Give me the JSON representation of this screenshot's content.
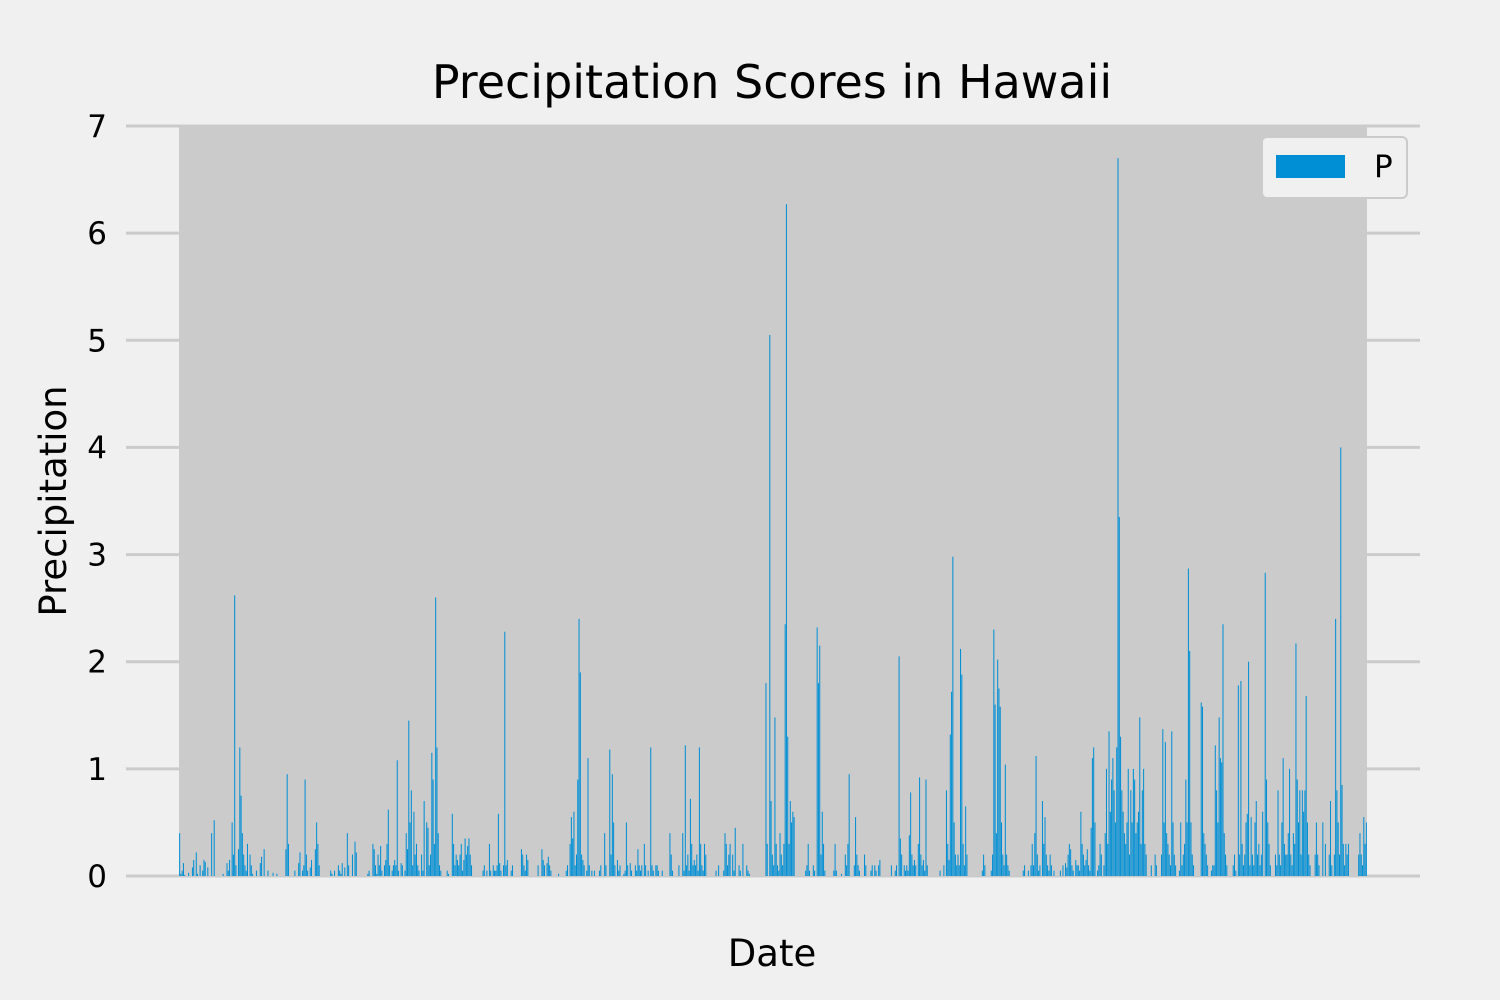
{
  "chart_data": {
    "type": "bar",
    "title": "Precipitation Scores in Hawaii",
    "xlabel": "Date",
    "ylabel": "Precipitation",
    "ylim": [
      0,
      7
    ],
    "yticks": [
      "0",
      "1",
      "2",
      "3",
      "4",
      "5",
      "6",
      "7"
    ],
    "grid": true,
    "legend": {
      "position": "top-right",
      "entries": [
        {
          "label": "P",
          "color": "#008fd5"
        }
      ]
    },
    "bar_color": "#008fd5",
    "plot_background": "#cbcbcb",
    "figure_background": "#f0f0f0",
    "series": [
      {
        "name": "P",
        "values": [
          0.4,
          0.02,
          0.05,
          0.12,
          0.01,
          0.0,
          0.0,
          0.03,
          0.0,
          0.0,
          0.08,
          0.15,
          0.0,
          0.22,
          0.02,
          0.0,
          0.1,
          0.0,
          0.05,
          0.15,
          0.13,
          0.0,
          0.08,
          0.0,
          0.0,
          0.4,
          0.0,
          0.52,
          0.0,
          0.0,
          0.0,
          0.0,
          0.0,
          0.0,
          0.02,
          0.0,
          0.0,
          0.12,
          0.05,
          0.15,
          0.0,
          0.5,
          0.2,
          2.62,
          0.1,
          0.0,
          0.25,
          1.2,
          0.75,
          0.4,
          0.2,
          0.1,
          0.05,
          0.3,
          0.0,
          0.2,
          0.1,
          0.02,
          0.0,
          0.0,
          0.05,
          0.0,
          0.0,
          0.12,
          0.18,
          0.0,
          0.25,
          0.0,
          0.0,
          0.05,
          0.0,
          0.0,
          0.0,
          0.03,
          0.0,
          0.0,
          0.02,
          0.0,
          0.0,
          0.0,
          0.0,
          0.0,
          0.0,
          0.25,
          0.95,
          0.3,
          0.0,
          0.0,
          0.0,
          0.0,
          0.05,
          0.0,
          0.0,
          0.12,
          0.22,
          0.0,
          0.05,
          0.1,
          0.9,
          0.2,
          0.05,
          0.0,
          0.08,
          0.15,
          0.0,
          0.0,
          0.25,
          0.5,
          0.3,
          0.1,
          0.0,
          0.0,
          0.0,
          0.0,
          0.0,
          0.0,
          0.0,
          0.0,
          0.05,
          0.02,
          0.0,
          0.05,
          0.0,
          0.0,
          0.1,
          0.05,
          0.02,
          0.12,
          0.0,
          0.08,
          0.0,
          0.4,
          0.1,
          0.0,
          0.0,
          0.2,
          0.0,
          0.32,
          0.22,
          0.0,
          0.0,
          0.0,
          0.0,
          0.0,
          0.0,
          0.0,
          0.0,
          0.02,
          0.05,
          0.0,
          0.0,
          0.3,
          0.25,
          0.1,
          0.02,
          0.2,
          0.1,
          0.28,
          0.05,
          0.0,
          0.1,
          0.15,
          0.3,
          0.62,
          0.1,
          0.0,
          0.05,
          0.1,
          0.15,
          0.1,
          1.08,
          0.05,
          0.0,
          0.12,
          0.1,
          0.0,
          0.05,
          0.4,
          0.25,
          1.45,
          0.5,
          0.8,
          0.1,
          0.6,
          0.2,
          0.3,
          0.1,
          0.05,
          0.0,
          0.2,
          0.05,
          0.7,
          0.0,
          0.5,
          0.45,
          0.1,
          0.2,
          1.15,
          0.9,
          0.3,
          2.6,
          1.2,
          0.4,
          0.1,
          0.05,
          0.0,
          0.0,
          0.0,
          0.0,
          0.05,
          0.02,
          0.0,
          0.0,
          0.58,
          0.3,
          0.1,
          0.2,
          0.15,
          0.1,
          0.2,
          0.3,
          0.05,
          0.15,
          0.35,
          0.2,
          0.28,
          0.35,
          0.2,
          0.1,
          0.0,
          0.0,
          0.0,
          0.0,
          0.0,
          0.0,
          0.0,
          0.0,
          0.05,
          0.1,
          0.0,
          0.05,
          0.0,
          0.3,
          0.05,
          0.0,
          0.1,
          0.05,
          0.05,
          0.1,
          0.58,
          0.12,
          0.05,
          0.0,
          0.1,
          2.28,
          0.1,
          0.15,
          0.0,
          0.0,
          0.05,
          0.1,
          0.0,
          0.0,
          0.0,
          0.0,
          0.0,
          0.0,
          0.25,
          0.2,
          0.1,
          0.05,
          0.2,
          0.15,
          0.0,
          0.0,
          0.0,
          0.0,
          0.0,
          0.0,
          0.0,
          0.1,
          0.0,
          0.0,
          0.25,
          0.15,
          0.1,
          0.0,
          0.12,
          0.18,
          0.1,
          0.05,
          0.0,
          0.0,
          0.0,
          0.0,
          0.0,
          0.02,
          0.0,
          0.0,
          0.0,
          0.0,
          0.0,
          0.05,
          0.1,
          0.0,
          0.3,
          0.55,
          0.35,
          0.6,
          0.1,
          0.2,
          0.9,
          2.4,
          1.9,
          0.2,
          0.15,
          0.1,
          0.0,
          0.05,
          1.1,
          0.1,
          0.0,
          0.05,
          0.0,
          0.05,
          0.0,
          0.0,
          0.0,
          0.05,
          0.1,
          0.0,
          0.0,
          0.4,
          0.1,
          0.0,
          0.0,
          1.18,
          0.2,
          0.95,
          0.5,
          0.1,
          0.0,
          0.15,
          0.05,
          0.1,
          0.0,
          0.0,
          0.02,
          0.05,
          0.5,
          0.1,
          0.0,
          0.12,
          0.05,
          0.0,
          0.0,
          0.1,
          0.05,
          0.25,
          0.1,
          0.05,
          0.1,
          0.0,
          0.3,
          0.1,
          0.0,
          0.05,
          0.0,
          1.2,
          0.1,
          0.05,
          0.0,
          0.1,
          0.1,
          0.05,
          0.0,
          0.0,
          0.05,
          0.0,
          0.0,
          0.0,
          0.0,
          0.0,
          0.4,
          0.2,
          0.05,
          0.0,
          0.0,
          0.0,
          0.0,
          0.1,
          0.0,
          0.0,
          0.4,
          0.05,
          1.22,
          0.1,
          0.2,
          0.05,
          0.72,
          0.3,
          0.1,
          0.15,
          0.1,
          0.2,
          0.05,
          1.2,
          0.3,
          0.1,
          0.05,
          0.3,
          0.2,
          0.0,
          0.0,
          0.0,
          0.0,
          0.0,
          0.0,
          0.0,
          0.05,
          0.0,
          0.1,
          0.0,
          0.0,
          0.0,
          0.05,
          0.4,
          0.3,
          0.1,
          0.2,
          0.3,
          0.0,
          0.2,
          0.05,
          0.45,
          0.0,
          0.0,
          0.1,
          0.05,
          0.0,
          0.3,
          0.0,
          0.0,
          0.1,
          0.05,
          0.02,
          0.0,
          0.0,
          0.0,
          0.0,
          0.0,
          0.0,
          0.0,
          0.0,
          0.0,
          0.0,
          0.0,
          0.0,
          1.8,
          0.3,
          0.0,
          5.05,
          0.7,
          0.2,
          0.1,
          1.48,
          0.3,
          0.1,
          0.05,
          0.4,
          0.2,
          0.1,
          0.3,
          2.35,
          6.27,
          1.3,
          0.3,
          0.7,
          0.5,
          0.6,
          0.55,
          0.0,
          0.0,
          0.0,
          0.0,
          0.0,
          0.0,
          0.0,
          0.0,
          0.05,
          0.1,
          0.3,
          0.05,
          0.0,
          0.0,
          0.1,
          0.05,
          0.0,
          2.32,
          1.8,
          2.15,
          0.2,
          0.6,
          0.3,
          0.05,
          0.0,
          0.0,
          0.0,
          0.0,
          0.0,
          0.0,
          0.05,
          0.3,
          0.05,
          0.0,
          0.0,
          0.0,
          0.02,
          0.0,
          0.0,
          0.2,
          0.1,
          0.3,
          0.95,
          0.0,
          0.0,
          0.0,
          0.1,
          0.55,
          0.2,
          0.1,
          0.05,
          0.0,
          0.0,
          0.0,
          0.2,
          0.1,
          0.0,
          0.0,
          0.0,
          0.05,
          0.1,
          0.0,
          0.1,
          0.05,
          0.0,
          0.1,
          0.15,
          0.0,
          0.0,
          0.0,
          0.0,
          0.0,
          0.0,
          0.0,
          0.0,
          0.1,
          0.0,
          0.0,
          0.05,
          0.1,
          0.0,
          2.05,
          0.35,
          0.2,
          0.0,
          0.1,
          0.05,
          0.1,
          0.05,
          0.38,
          0.78,
          0.2,
          0.1,
          0.15,
          0.1,
          0.0,
          0.3,
          0.92,
          0.2,
          0.1,
          0.15,
          0.05,
          0.9,
          0.1,
          0.0,
          0.0,
          0.0,
          0.0,
          0.0,
          0.0,
          0.0,
          0.0,
          0.0,
          0.05,
          0.0,
          0.0,
          0.1,
          0.0,
          0.8,
          0.3,
          0.15,
          1.32,
          1.72,
          2.98,
          0.5,
          0.2,
          0.1,
          0.2,
          0.1,
          2.12,
          1.88,
          0.3,
          0.1,
          0.65,
          0.2,
          0.0,
          0.0,
          0.0,
          0.0,
          0.0,
          0.0,
          0.0,
          0.0,
          0.0,
          0.0,
          0.0,
          0.05,
          0.2,
          0.1,
          0.0,
          0.0,
          0.0,
          0.0,
          0.05,
          0.2,
          2.3,
          1.6,
          0.4,
          2.02,
          1.75,
          1.58,
          0.5,
          0.2,
          0.1,
          1.04,
          0.2,
          0.1,
          0.05,
          0.0,
          0.0,
          0.0,
          0.0,
          0.0,
          0.0,
          0.0,
          0.0,
          0.0,
          0.0,
          0.05,
          0.1,
          0.0,
          0.0,
          0.05,
          0.0,
          0.1,
          0.3,
          0.1,
          0.4,
          1.12,
          0.2,
          0.05,
          0.1,
          0.0,
          0.7,
          0.3,
          0.55,
          0.2,
          0.1,
          0.05,
          0.2,
          0.1,
          0.0,
          0.05,
          0.0,
          0.0,
          0.0,
          0.0,
          0.05,
          0.0,
          0.1,
          0.0,
          0.12,
          0.08,
          0.2,
          0.3,
          0.25,
          0.1,
          0.05,
          0.0,
          0.15,
          0.1,
          0.1,
          0.05,
          0.6,
          0.3,
          0.2,
          0.1,
          0.15,
          0.25,
          0.1,
          0.05,
          0.45,
          1.1,
          1.2,
          0.5,
          0.0,
          0.05,
          0.1,
          0.3,
          0.2,
          0.0,
          0.1,
          0.4,
          1.0,
          0.3,
          1.35,
          0.6,
          0.9,
          1.1,
          0.8,
          0.5,
          1.2,
          6.7,
          3.35,
          1.3,
          0.8,
          0.6,
          0.4,
          0.3,
          0.5,
          1.0,
          0.2,
          0.8,
          0.5,
          1.0,
          0.9,
          0.4,
          0.5,
          0.6,
          1.48,
          0.3,
          0.8,
          1.0,
          0.3,
          0.2,
          0.0,
          0.0,
          0.0,
          0.1,
          0.0,
          0.0,
          0.2,
          0.1,
          0.0,
          0.0,
          0.0,
          0.2,
          1.37,
          0.5,
          1.25,
          0.4,
          0.3,
          0.2,
          0.1,
          1.35,
          0.5,
          0.2,
          0.1,
          0.0,
          0.0,
          0.05,
          0.5,
          0.1,
          0.2,
          0.3,
          0.9,
          0.5,
          2.87,
          2.1,
          0.5,
          0.2,
          0.1,
          0.0,
          0.0,
          0.0,
          0.0,
          0.0,
          1.62,
          1.58,
          0.4,
          0.3,
          0.2,
          0.1,
          0.0,
          0.0,
          0.05,
          0.1,
          0.1,
          1.22,
          0.8,
          0.5,
          1.48,
          1.1,
          1.06,
          2.35,
          0.4,
          0.2,
          0.1,
          0.0,
          0.0,
          0.0,
          0.0,
          0.1,
          0.2,
          0.05,
          0.0,
          1.78,
          0.2,
          1.82,
          0.3,
          0.1,
          0.2,
          0.5,
          0.58,
          2.0,
          0.1,
          0.55,
          0.2,
          0.1,
          0.5,
          0.7,
          0.2,
          0.3,
          0.1,
          0.2,
          0.6,
          0.0,
          2.83,
          0.9,
          0.5,
          0.3,
          0.1,
          0.0,
          0.0,
          0.0,
          0.2,
          0.1,
          0.8,
          0.2,
          0.1,
          0.5,
          1.1,
          0.3,
          0.2,
          0.2,
          0.4,
          1.0,
          0.2,
          0.1,
          0.4,
          0.3,
          2.17,
          0.9,
          0.5,
          0.8,
          0.2,
          0.8,
          0.6,
          0.8,
          1.68,
          0.5,
          0.2,
          0.1,
          0.0,
          0.0,
          0.0,
          0.2,
          0.5,
          0.2,
          0.1,
          0.0,
          0.0,
          0.5,
          0.0,
          0.3,
          0.0,
          0.0,
          0.2,
          0.7,
          0.1,
          0.0,
          0.2,
          2.4,
          0.8,
          0.5,
          0.2,
          4.0,
          0.85,
          0.3,
          0.1,
          0.3,
          0.2,
          0.3,
          0.0,
          0.0,
          0.0,
          0.0,
          0.0,
          0.0,
          0.0,
          0.2,
          0.4,
          0.2,
          0.1,
          0.55,
          0.3,
          0.5
        ]
      }
    ]
  }
}
